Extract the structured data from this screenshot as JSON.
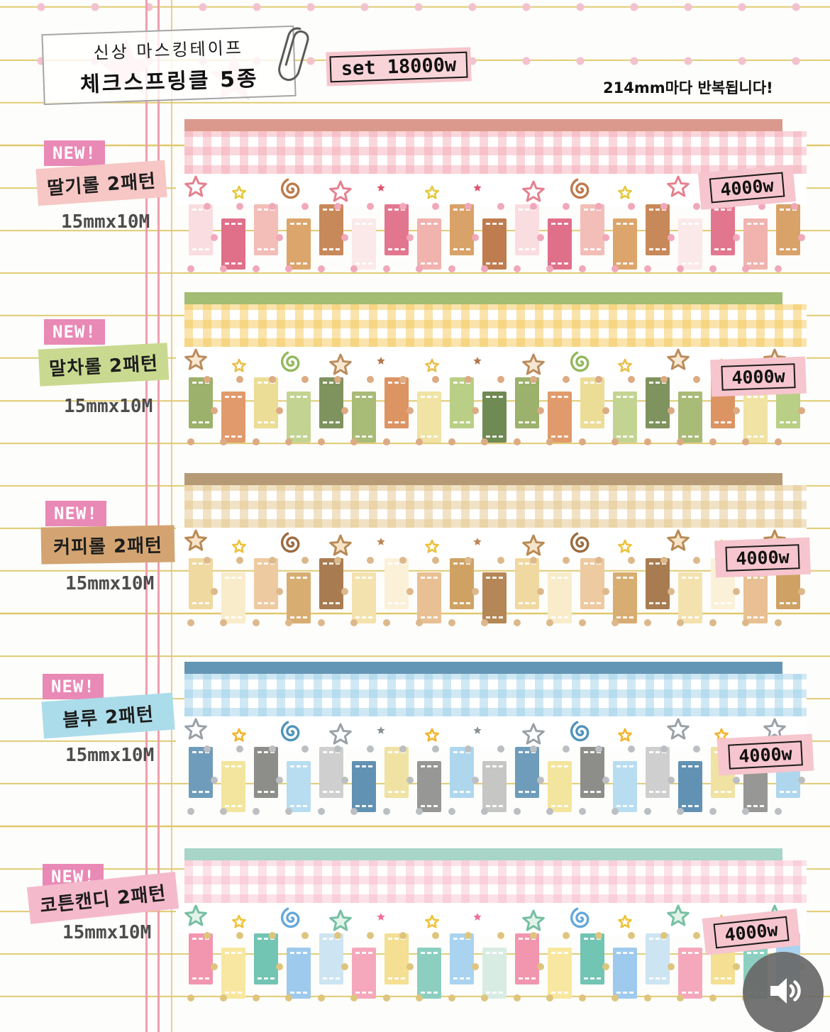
{
  "header": {
    "title_line1": "신상 마스킹테이프",
    "title_line2": "체크스프링클 5종",
    "set_price": "set 18000w",
    "repeat_note": "214mm마다 반복됩니다!"
  },
  "colors": {
    "badge_pink": "#e989b5",
    "price_tag_pink": "#f6c5cd",
    "note_line_yellow": "#dbc056",
    "margin_line_pink": "#ee9fae",
    "margin_line_gold": "#eabf6f",
    "polka_dot_pink": "#f2c2ce",
    "audio_button_gray": "#686868"
  },
  "sections": [
    {
      "badge": "NEW!",
      "name": "딸기롤 2패턴",
      "size": "15mmx10M",
      "price": "4000w",
      "label_bg": "#f6c7c4",
      "bar": "#db998d",
      "gingham": "rgba(243,166,178,0.45)",
      "star_stroke": "#e5808f",
      "star_fill": "#ffffff",
      "small_star": "#e3c93e",
      "tiny_star": "#e0556d",
      "swirl": "#bc7a4c",
      "dot": "#f0a8ba",
      "rolls": [
        "#f9dde0",
        "#e06f8a",
        "#f3bdb8",
        "#dca56b",
        "#c8895a",
        "#fbe9ea",
        "#e2768f",
        "#f0b3ae",
        "#d9a268",
        "#bf7c4e"
      ]
    },
    {
      "badge": "NEW!",
      "name": "말차롤 2패턴",
      "size": "15mmx10M",
      "price": "4000w",
      "label_bg": "#c9d98f",
      "bar": "#a3bd72",
      "gingham": "rgba(244,200,90,0.5)",
      "star_stroke": "#bb8c5d",
      "star_fill": "#f8e8d2",
      "small_star": "#e8bf4a",
      "tiny_star": "#b3764a",
      "swirl": "#93b85b",
      "dot": "#dcab84",
      "rolls": [
        "#9cb16b",
        "#e19a6b",
        "#ecdd96",
        "#c3d492",
        "#7e935d",
        "#a8bb77",
        "#dd9463",
        "#f0e3a4",
        "#b9cf85",
        "#6f8a52"
      ]
    },
    {
      "badge": "NEW!",
      "name": "커피롤 2패턴",
      "size": "15mmx10M",
      "price": "4000w",
      "label_bg": "#d3a471",
      "bar": "#b59a75",
      "gingham": "rgba(228,198,140,0.5)",
      "star_stroke": "#b98a55",
      "star_fill": "#f7e4c8",
      "small_star": "#ecc23c",
      "tiny_star": "#bc8354",
      "swirl": "#9a6b3f",
      "dot": "#dcb88c",
      "rolls": [
        "#f0d9a0",
        "#f8ecca",
        "#eecaa0",
        "#d8ad72",
        "#a87c50",
        "#f4e2ae",
        "#fbf1d8",
        "#e9c093",
        "#cfa264",
        "#b58756"
      ]
    },
    {
      "badge": "NEW!",
      "name": "블루 2패턴",
      "size": "15mmx10M",
      "price": "4000w",
      "label_bg": "#abdcea",
      "bar": "#6396b4",
      "gingham": "rgba(150,205,230,0.45)",
      "star_stroke": "#9aa1a7",
      "star_fill": "#ffffff",
      "small_star": "#f2b42d",
      "tiny_star": "#8b9196",
      "swirl": "#4e93bb",
      "dot": "#bcbfc2",
      "rolls": [
        "#6f9cba",
        "#f3e59d",
        "#8d8d8a",
        "#b8ddf1",
        "#cfcfcf",
        "#6292b3",
        "#f0e2a2",
        "#979795",
        "#aed7ee",
        "#c6c6c4"
      ]
    },
    {
      "badge": "NEW!",
      "name": "코튼캔디 2패턴",
      "size": "15mmx10M",
      "price": "4000w",
      "label_bg": "#f5b9cc",
      "bar": "#a7d6c9",
      "gingham": "rgba(246,180,198,0.4)",
      "star_stroke": "#76bfa3",
      "star_fill": "#e2f3e9",
      "small_star": "#eec33b",
      "tiny_star": "#ee6f99",
      "swirl": "#64a8da",
      "dot": "#dec57e",
      "rolls": [
        "#f295ae",
        "#f8e7a0",
        "#72c4b3",
        "#9ecaee",
        "#cde4f2",
        "#f5a8bc",
        "#f4df92",
        "#8ccfc0",
        "#aad3f0",
        "#d8ece4"
      ]
    }
  ],
  "audio": {
    "label": "speaker"
  }
}
